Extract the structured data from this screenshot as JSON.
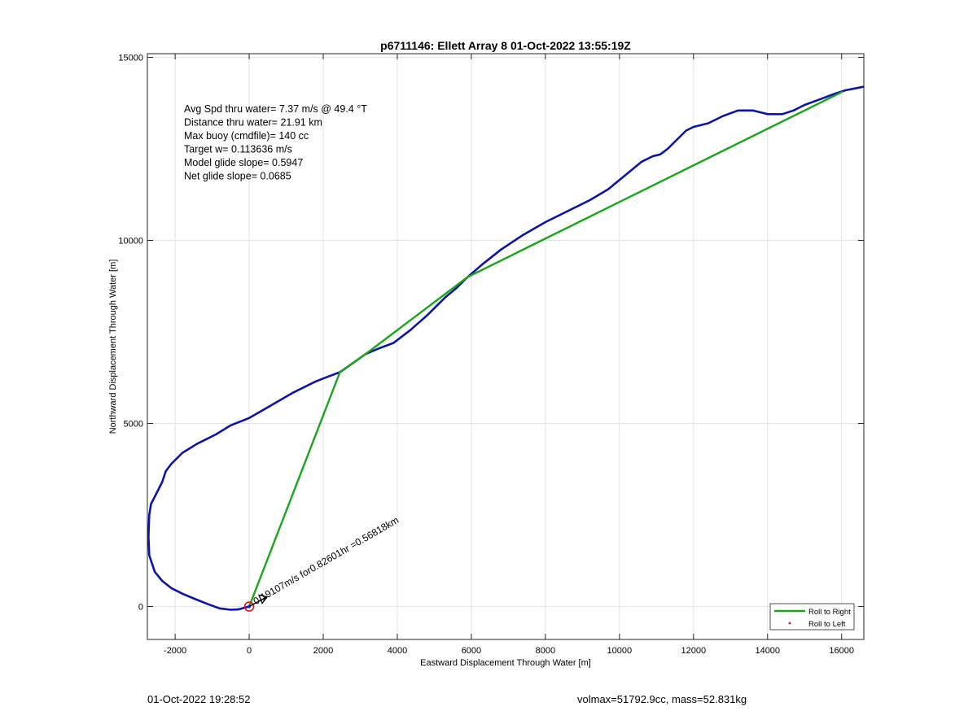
{
  "chart_data": {
    "type": "line",
    "title": "p6711146: Ellett Array 8 01-Oct-2022 13:55:19Z",
    "xlabel": "Eastward Displacement Through Water [m]",
    "ylabel": "Northward Displacement Through Water [m]",
    "xlim": [
      -2750,
      16600
    ],
    "ylim": [
      -900,
      15100
    ],
    "xticks": [
      -2000,
      0,
      2000,
      4000,
      6000,
      8000,
      10000,
      12000,
      14000,
      16000
    ],
    "yticks": [
      0,
      5000,
      10000,
      15000
    ],
    "grid": true,
    "legend_position": "bottom-right",
    "annotations": [
      "Avg Spd thru water=  7.37 m/s @  49.4 °T",
      "Distance thru water= 21.91 km",
      "Max buoy (cmdfile)= 140 cc",
      "Target w= 0.113636 m/s",
      "Model glide slope= 0.5947",
      "Net glide slope= 0.0685"
    ],
    "arrow_label": "0.19107m/s for0.82601hr =0.56818km",
    "series": [
      {
        "name": "Roll to Right",
        "color": "#1aa51a",
        "x": [
          0,
          2450,
          3150,
          5900,
          16000
        ],
        "y": [
          0,
          6400,
          6900,
          9000,
          14050
        ]
      },
      {
        "name": "Roll to Left",
        "color": "#e01010",
        "x": [],
        "y": []
      },
      {
        "color": "#0a14aa",
        "x": [
          0,
          -300,
          -500,
          -800,
          -1100,
          -1450,
          -1800,
          -2100,
          -2350,
          -2550,
          -2700,
          -2720,
          -2700,
          -2650,
          -2500,
          -2350,
          -2250,
          -2100,
          -1800,
          -1400,
          -900,
          -500,
          0,
          600,
          1200,
          1800,
          2100,
          2450,
          2800,
          3150,
          3500,
          3900,
          4350,
          4800,
          5300,
          5600,
          5900,
          6300,
          6800,
          7400,
          8000,
          8600,
          9200,
          9700,
          10000,
          10300,
          10600,
          10900,
          11100,
          11300,
          11600,
          11800,
          12000,
          12400,
          12800,
          13200,
          13600,
          14000,
          14400,
          14700,
          15000,
          15400,
          15800,
          16100,
          16600
        ],
        "y": [
          0,
          -80,
          -90,
          -50,
          60,
          200,
          350,
          500,
          700,
          950,
          1400,
          1900,
          2500,
          2800,
          3100,
          3400,
          3700,
          3900,
          4200,
          4450,
          4700,
          4950,
          5150,
          5500,
          5850,
          6150,
          6270,
          6400,
          6650,
          6900,
          7050,
          7200,
          7550,
          7950,
          8450,
          8700,
          9000,
          9350,
          9750,
          10150,
          10500,
          10800,
          11100,
          11400,
          11650,
          11900,
          12150,
          12300,
          12350,
          12500,
          12800,
          13000,
          13100,
          13200,
          13400,
          13550,
          13550,
          13450,
          13450,
          13550,
          13700,
          13850,
          14000,
          14100,
          14200
        ]
      }
    ]
  },
  "footer": {
    "left": "01-Oct-2022 19:28:52",
    "right": "volmax=51792.9cc, mass=52.831kg"
  }
}
